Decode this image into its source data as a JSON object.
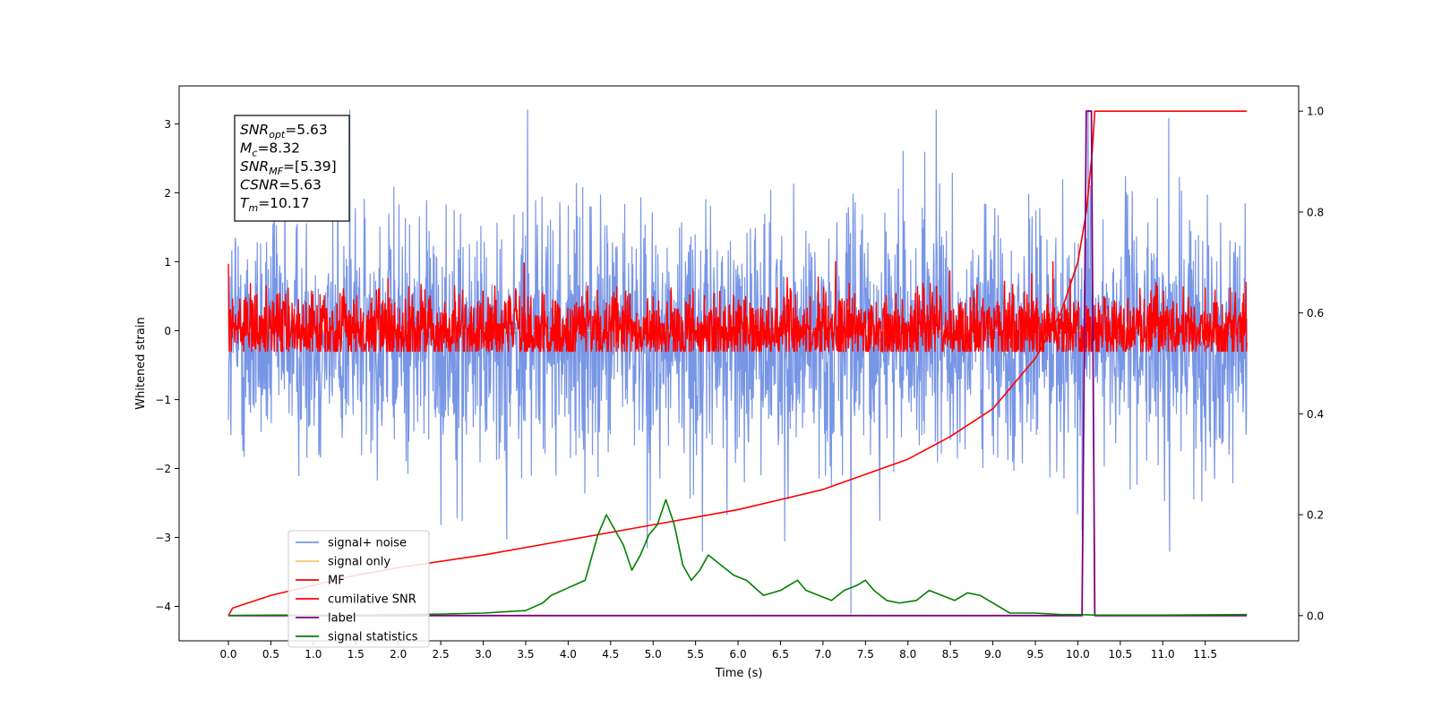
{
  "chart_data": {
    "type": "line",
    "xlabel": "Time (s)",
    "ylabel": "Whitened strain",
    "xlim": [
      -0.58,
      12.6
    ],
    "ylim_left": [
      -4.5,
      3.55
    ],
    "ylim_right": [
      -0.05,
      1.05
    ],
    "x_ticks": [
      0.0,
      0.5,
      1.0,
      1.5,
      2.0,
      2.5,
      3.0,
      3.5,
      4.0,
      4.5,
      5.0,
      5.5,
      6.0,
      6.5,
      7.0,
      7.5,
      8.0,
      8.5,
      9.0,
      9.5,
      10.0,
      10.5,
      11.0,
      11.5
    ],
    "x_tick_labels": [
      "0.0",
      "0.5",
      "1.0",
      "1.5",
      "2.0",
      "2.5",
      "3.0",
      "3.5",
      "4.0",
      "4.5",
      "5.0",
      "5.5",
      "6.0",
      "6.5",
      "7.0",
      "7.5",
      "8.0",
      "8.5",
      "9.0",
      "9.5",
      "10.0",
      "10.5",
      "11.0",
      "11.5"
    ],
    "y_left_ticks": [
      3,
      2,
      1,
      0,
      -1,
      -2,
      -3,
      -4
    ],
    "y_left_tick_labels": [
      "3",
      "2",
      "1",
      "0",
      "−1",
      "−2",
      "−3",
      "−4"
    ],
    "y_right_ticks": [
      1.0,
      0.8,
      0.6,
      0.4,
      0.2,
      0.0
    ],
    "y_right_tick_labels": [
      "1.0",
      "0.8",
      "0.6",
      "0.4",
      "0.2",
      "0.0"
    ],
    "legend_position": "lower-left",
    "annotation": {
      "lines": [
        {
          "sym": "SNR",
          "sub": "opt",
          "val": "=5.63"
        },
        {
          "sym": "M",
          "sub": "c",
          "val": "=8.32"
        },
        {
          "sym": "SNR",
          "sub": "MF",
          "val": "=[5.39]"
        },
        {
          "sym": "CSNR",
          "sub": "",
          "val": "=5.63"
        },
        {
          "sym": "T",
          "sub": "m",
          "val": "=10.17"
        }
      ]
    },
    "series": [
      {
        "name": "signal+ noise",
        "axis": "left",
        "color": "#7896e6",
        "kind": "noise",
        "x_range": [
          0.0,
          11.99
        ],
        "center": -0.1,
        "spread": 0.95,
        "max_y": 3.2,
        "min_y": -4.1,
        "spikes": [
          [
            1.43,
            3.2
          ],
          [
            3.52,
            3.2
          ],
          [
            7.33,
            -4.1
          ],
          [
            10.12,
            3.2
          ],
          [
            10.05,
            -2.9
          ],
          [
            11.08,
            -3.2
          ],
          [
            5.58,
            -3.2
          ],
          [
            4.93,
            -3.15
          ],
          [
            6.55,
            -3.05
          ]
        ]
      },
      {
        "name": "signal only",
        "axis": "left",
        "color": "#f5c96b",
        "kind": "flat",
        "x": [
          0.0,
          12.0
        ],
        "y": [
          0.0,
          0.0
        ]
      },
      {
        "name": "MF",
        "axis": "left",
        "color": "#ff0000",
        "kind": "noise",
        "x_range": [
          0.0,
          11.99
        ],
        "center": 0.0,
        "spread": 0.3,
        "max_y": 1.0,
        "min_y": -0.3,
        "spikes": [
          [
            0.0,
            0.97
          ],
          [
            3.48,
            0.98
          ],
          [
            6.58,
            0.77
          ],
          [
            11.5,
            0.62
          ],
          [
            11.98,
            0.7
          ],
          [
            1.88,
            0.75
          ]
        ]
      },
      {
        "name": "cumilative SNR",
        "axis": "right",
        "color": "#ff0000",
        "kind": "curve",
        "x": [
          0.0,
          0.05,
          0.5,
          1.0,
          1.5,
          2.0,
          3.0,
          4.0,
          5.0,
          6.0,
          7.0,
          7.5,
          8.0,
          8.5,
          9.0,
          9.5,
          9.8,
          10.0,
          10.1,
          10.17,
          10.2,
          11.99
        ],
        "y": [
          0.0,
          0.015,
          0.04,
          0.06,
          0.08,
          0.095,
          0.12,
          0.15,
          0.18,
          0.21,
          0.25,
          0.28,
          0.31,
          0.355,
          0.41,
          0.51,
          0.6,
          0.7,
          0.8,
          0.92,
          1.0,
          1.0
        ]
      },
      {
        "name": "label",
        "axis": "right",
        "color": "#800080",
        "kind": "curve",
        "x": [
          0.0,
          10.05,
          10.1,
          10.16,
          10.2,
          11.99
        ],
        "y": [
          0.0,
          0.0,
          1.0,
          1.0,
          0.0,
          0.0
        ]
      },
      {
        "name": "signal statistics",
        "axis": "right",
        "color": "#008000",
        "kind": "curve",
        "x": [
          0.0,
          0.5,
          1.0,
          1.5,
          2.0,
          2.5,
          3.0,
          3.5,
          3.7,
          3.8,
          4.0,
          4.2,
          4.35,
          4.45,
          4.55,
          4.65,
          4.75,
          4.85,
          4.95,
          5.05,
          5.15,
          5.25,
          5.35,
          5.45,
          5.55,
          5.65,
          5.8,
          5.95,
          6.1,
          6.3,
          6.5,
          6.6,
          6.7,
          6.8,
          6.95,
          7.1,
          7.25,
          7.4,
          7.5,
          7.6,
          7.75,
          7.9,
          8.1,
          8.25,
          8.4,
          8.55,
          8.7,
          8.85,
          9.0,
          9.2,
          9.5,
          9.8,
          10.0,
          10.2,
          10.5,
          11.0,
          11.99
        ],
        "y": [
          0.0,
          0.001,
          0.001,
          0.001,
          0.002,
          0.003,
          0.005,
          0.01,
          0.025,
          0.04,
          0.055,
          0.07,
          0.16,
          0.2,
          0.17,
          0.14,
          0.09,
          0.12,
          0.16,
          0.18,
          0.23,
          0.18,
          0.1,
          0.07,
          0.09,
          0.12,
          0.1,
          0.08,
          0.07,
          0.04,
          0.05,
          0.06,
          0.07,
          0.05,
          0.04,
          0.03,
          0.05,
          0.06,
          0.07,
          0.05,
          0.03,
          0.025,
          0.03,
          0.05,
          0.04,
          0.03,
          0.045,
          0.04,
          0.025,
          0.005,
          0.005,
          0.002,
          0.002,
          0.001,
          0.001,
          0.001,
          0.002
        ]
      }
    ]
  }
}
